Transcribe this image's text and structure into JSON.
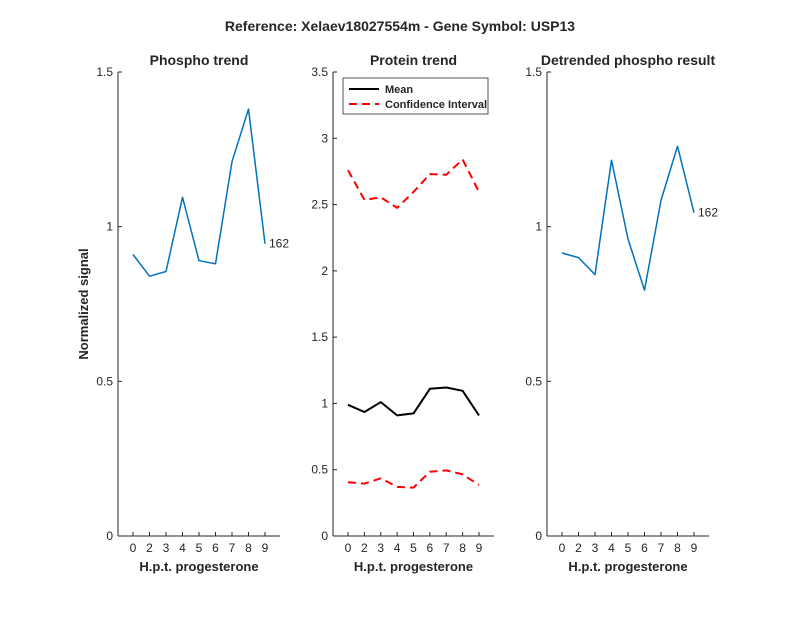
{
  "figure": {
    "title": "Reference:  Xelaev18027554m - Gene Symbol:  USP13"
  },
  "chart_data": [
    {
      "type": "line",
      "title": "Phospho trend",
      "xlabel": "H.p.t. progesterone",
      "ylabel": "Normalized signal",
      "categories": [
        "0",
        "2",
        "3",
        "4",
        "5",
        "6",
        "7",
        "8",
        "9"
      ],
      "ylim": [
        0,
        1.5
      ],
      "yticks": [
        "0",
        "0.5",
        "1",
        "1.5"
      ],
      "series": [
        {
          "values": [
            0.91,
            0.84,
            0.855,
            1.095,
            0.89,
            0.88,
            1.21,
            1.38,
            0.945
          ],
          "color": "#0072BD",
          "style": "solid"
        }
      ],
      "annotation": {
        "text": "162",
        "at_index": 8
      },
      "grid": false
    },
    {
      "type": "line",
      "title": "Protein trend",
      "xlabel": "H.p.t. progesterone",
      "ylabel": "",
      "categories": [
        "0",
        "2",
        "3",
        "4",
        "5",
        "6",
        "7",
        "8",
        "9"
      ],
      "ylim": [
        0,
        3.5
      ],
      "yticks": [
        "0",
        "0.5",
        "1",
        "1.5",
        "2",
        "2.5",
        "3",
        "3.5"
      ],
      "series": [
        {
          "name": "Mean",
          "values": [
            0.99,
            0.935,
            1.01,
            0.91,
            0.925,
            1.11,
            1.12,
            1.095,
            0.91
          ],
          "color": "#000000",
          "style": "solid"
        },
        {
          "name": "Confidence Interval",
          "values": [
            2.76,
            2.535,
            2.555,
            2.475,
            2.595,
            2.73,
            2.725,
            2.84,
            2.595
          ],
          "color": "#FF0000",
          "style": "dashed"
        },
        {
          "values": [
            0.405,
            0.395,
            0.435,
            0.37,
            0.365,
            0.485,
            0.495,
            0.465,
            0.385
          ],
          "color": "#FF0000",
          "style": "dashed"
        }
      ],
      "legend": {
        "placement": "top-left",
        "entries": [
          "Mean",
          "Confidence Interval"
        ]
      },
      "grid": false
    },
    {
      "type": "line",
      "title": "Detrended phospho result",
      "xlabel": "H.p.t. progesterone",
      "ylabel": "",
      "categories": [
        "0",
        "2",
        "3",
        "4",
        "5",
        "6",
        "7",
        "8",
        "9"
      ],
      "ylim": [
        0,
        1.5
      ],
      "yticks": [
        "0",
        "0.5",
        "1",
        "1.5"
      ],
      "series": [
        {
          "values": [
            0.915,
            0.9,
            0.845,
            1.215,
            0.96,
            0.795,
            1.085,
            1.26,
            1.045
          ],
          "color": "#0072BD",
          "style": "solid"
        }
      ],
      "annotation": {
        "text": "162",
        "at_index": 8
      },
      "grid": false
    }
  ]
}
